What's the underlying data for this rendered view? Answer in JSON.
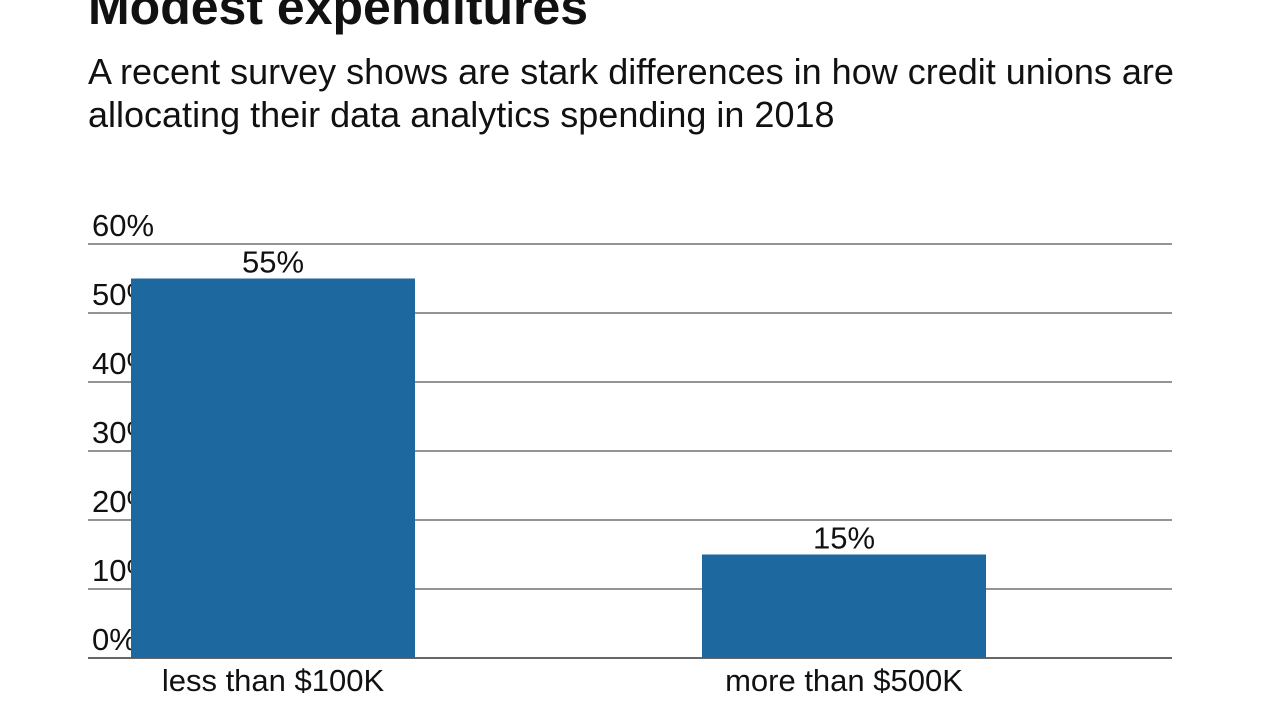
{
  "chart_data": {
    "type": "bar",
    "title": "Modest expenditures",
    "subtitle": "A recent survey shows are stark differences in how credit unions are allocating their data analytics spending in 2018",
    "categories": [
      "less than $100K",
      "more than $500K"
    ],
    "values": [
      55,
      15
    ],
    "data_labels": [
      "55%",
      "15%"
    ],
    "xlabel": "",
    "ylabel": "",
    "ylim": [
      0,
      60
    ],
    "yticks": [
      "0%",
      "10%",
      "20%",
      "30%",
      "40%",
      "50%",
      "60%"
    ],
    "grid": true,
    "bar_color": "#1c689f"
  }
}
